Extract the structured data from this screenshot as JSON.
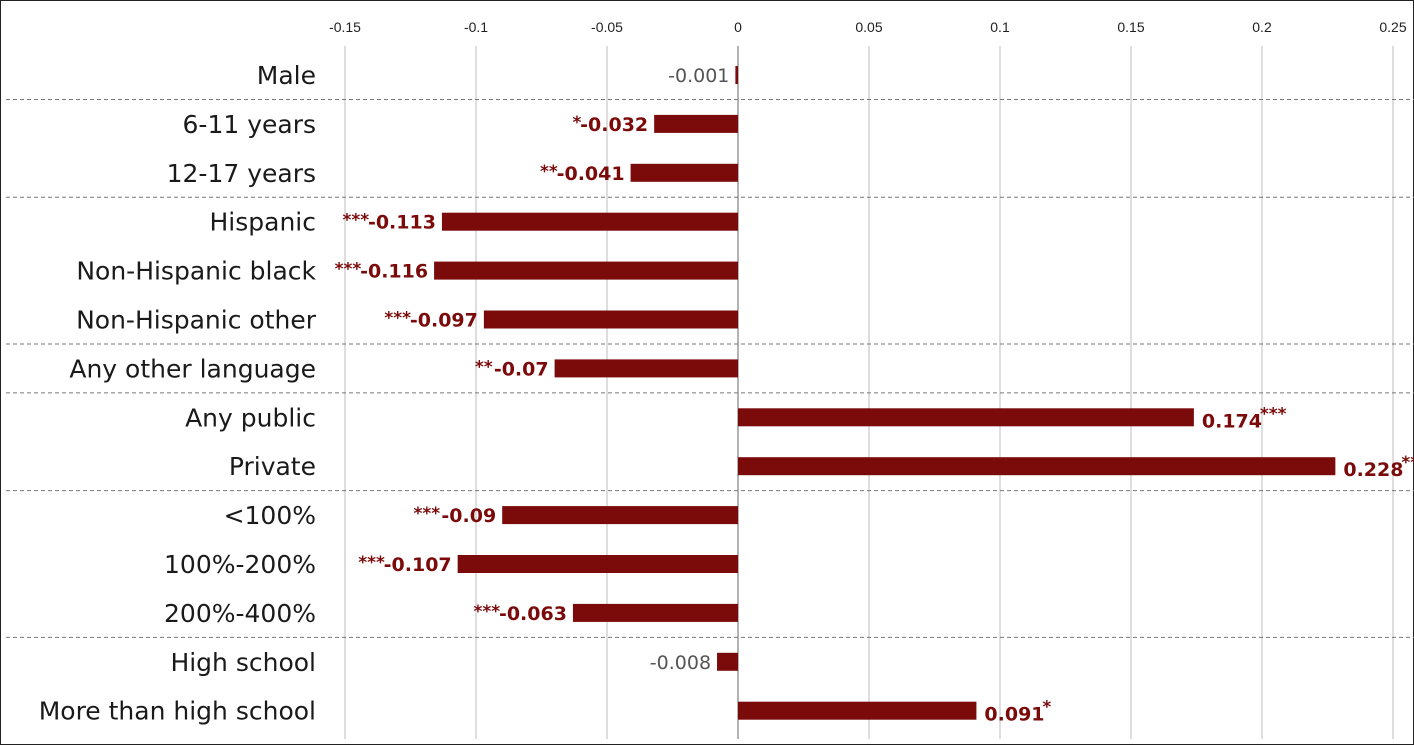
{
  "chart_data": {
    "type": "bar",
    "orientation": "horizontal",
    "xlim": [
      -0.15,
      0.25
    ],
    "x_ticks": [
      "-0.15",
      "-0.1",
      "-0.05",
      "0",
      "0.05",
      "0.1",
      "0.15",
      "0.2",
      "0.25"
    ],
    "x_tick_values": [
      -0.15,
      -0.1,
      -0.05,
      0,
      0.05,
      0.1,
      0.15,
      0.2,
      0.25
    ],
    "grid": "vertical",
    "bar_color": "#7b0b0b",
    "label_color_significant": "#7b0b0b",
    "label_color_nonsignificant": "#555555",
    "categories": [
      "Male",
      "6-11 years",
      "12-17 years",
      "Hispanic",
      "Non-Hispanic black",
      "Non-Hispanic other",
      "Any other language",
      "Any public",
      "Private",
      "<100%",
      "100%-200%",
      "200%-400%",
      "High school",
      "More than high school"
    ],
    "values": [
      -0.001,
      -0.032,
      -0.041,
      -0.113,
      -0.116,
      -0.097,
      -0.07,
      0.174,
      0.228,
      -0.09,
      -0.107,
      -0.063,
      -0.008,
      0.091
    ],
    "value_labels": [
      "-0.001",
      "-0.032",
      "-0.041",
      "-0.113",
      "-0.116",
      "-0.097",
      "-0.07",
      "0.174",
      "0.228",
      "-0.09",
      "-0.107",
      "-0.063",
      "-0.008",
      "0.091"
    ],
    "significance": [
      "",
      "*",
      "**",
      "***",
      "***",
      "***",
      "**",
      "***",
      "***",
      "***",
      "***",
      "***",
      "",
      "*"
    ],
    "group_separators_after": [
      0,
      2,
      5,
      6,
      8,
      11
    ]
  }
}
